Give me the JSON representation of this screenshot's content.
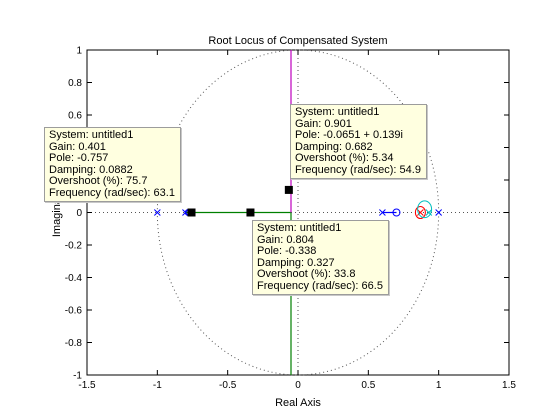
{
  "chart_data": {
    "type": "root-locus",
    "title": "Root Locus of Compensated System",
    "xlabel": "Real Axis",
    "ylabel": "Imaginary",
    "xlim": [
      -1.5,
      1.5
    ],
    "ylim": [
      -1,
      1
    ],
    "xticks": [
      "-1.5",
      "-1",
      "-0.5",
      "0",
      "0.5",
      "1",
      "1.5"
    ],
    "yticks": [
      "-1",
      "-0.8",
      "-0.6",
      "-0.4",
      "-0.2",
      "0",
      "0.2",
      "0.4",
      "0.6",
      "0.8",
      "1"
    ],
    "unit_circle": true,
    "poles": [
      [
        -1.0,
        0
      ],
      [
        -0.8,
        0
      ],
      [
        0.6,
        0
      ],
      [
        0.87,
        0
      ],
      [
        0.93,
        0
      ],
      [
        1.0,
        0
      ]
    ],
    "zeros": [
      [
        -0.78,
        0
      ],
      [
        0.7,
        0
      ],
      [
        0.87,
        0
      ],
      [
        0.9,
        0.02
      ]
    ],
    "branches": [
      {
        "color": "#008000",
        "points": [
          [
            -0.8,
            0
          ],
          [
            -0.05,
            0
          ],
          [
            -0.05,
            -1
          ]
        ]
      },
      {
        "color": "#bf00bf",
        "points": [
          [
            -0.05,
            0
          ],
          [
            -0.05,
            1
          ]
        ]
      },
      {
        "color": "#0000ff",
        "points": [
          [
            0.6,
            0
          ],
          [
            0.7,
            0
          ]
        ]
      }
    ],
    "markers": [
      {
        "x": -0.757,
        "y": 0
      },
      {
        "x": -0.338,
        "y": 0
      },
      {
        "x": -0.0651,
        "y": 0.139
      }
    ],
    "datatips": [
      {
        "system": "System: untitled1",
        "gain": "Gain: 0.401",
        "pole": "Pole: -0.757",
        "damping": "Damping: 0.0882",
        "overshoot": "Overshoot (%): 75.7",
        "frequency": "Frequency (rad/sec): 63.1"
      },
      {
        "system": "System: untitled1",
        "gain": "Gain: 0.901",
        "pole": "Pole: -0.0651 + 0.139i",
        "damping": "Damping: 0.682",
        "overshoot": "Overshoot (%): 5.34",
        "frequency": "Frequency (rad/sec): 54.9"
      },
      {
        "system": "System: untitled1",
        "gain": "Gain: 0.804",
        "pole": "Pole: -0.338",
        "damping": "Damping: 0.327",
        "overshoot": "Overshoot (%): 33.8",
        "frequency": "Frequency (rad/sec): 66.5"
      }
    ]
  }
}
